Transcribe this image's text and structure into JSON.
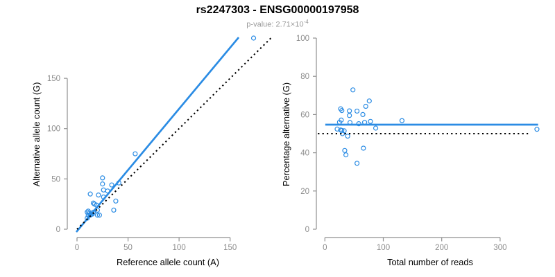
{
  "page": {
    "title": "rs2247303 - ENSG00000197958",
    "subtitle_base": "p-value: 2.71×10",
    "subtitle_exponent": "-4"
  },
  "colors": {
    "accent_blue": "#2b8ce4",
    "axis_gray": "#8f8f8f",
    "tick_text": "#8b8b8b",
    "axis_title_text": "#000000",
    "subtitle_text": "#9a9a9a",
    "dotted_black": "#000000",
    "background": "#ffffff"
  },
  "chart_data": [
    {
      "type": "scatter",
      "panel": "left",
      "xlabel": "Reference allele count (A)",
      "ylabel": "Alternative allele count (G)",
      "xticks": [
        0,
        50,
        100,
        150
      ],
      "yticks": [
        0,
        50,
        100,
        150
      ],
      "xlim": [
        -5,
        190
      ],
      "ylim": [
        -6,
        196
      ],
      "grid": false,
      "legend": "none",
      "points": [
        [
          10,
          11
        ],
        [
          11,
          14
        ],
        [
          13,
          14
        ],
        [
          14,
          15
        ],
        [
          15,
          15
        ],
        [
          16,
          17
        ],
        [
          10,
          17
        ],
        [
          12,
          16
        ],
        [
          11,
          18
        ],
        [
          13,
          35
        ],
        [
          16,
          26
        ],
        [
          17,
          25
        ],
        [
          19,
          24
        ],
        [
          20,
          19
        ],
        [
          20,
          14
        ],
        [
          22,
          14
        ],
        [
          21,
          34
        ],
        [
          25,
          45
        ],
        [
          25,
          51
        ],
        [
          26,
          39
        ],
        [
          26,
          32
        ],
        [
          30,
          38
        ],
        [
          34,
          44
        ],
        [
          36,
          19
        ],
        [
          38,
          28
        ],
        [
          41,
          46
        ],
        [
          57,
          75
        ],
        [
          173,
          190
        ]
      ],
      "lines": [
        {
          "name": "regression-line",
          "x1": -0.7,
          "y1": -2.8,
          "x2": 158.4,
          "y2": 190.7,
          "style": "solid",
          "meaning": "fitted allelic-imbalance regression, slope ~1.22"
        },
        {
          "name": "identity-line",
          "x1": 0,
          "y1": 0,
          "x2": 190,
          "y2": 190,
          "style": "dotted",
          "meaning": "y = x (no imbalance)"
        }
      ]
    },
    {
      "type": "scatter",
      "panel": "right",
      "xlabel": "Total number of reads",
      "ylabel": "Percentage alternative (G)",
      "xticks": [
        0,
        100,
        200,
        300
      ],
      "yticks": [
        0,
        20,
        40,
        60,
        80,
        100
      ],
      "xlim": [
        -16,
        377
      ],
      "ylim": [
        -3,
        103
      ],
      "grid": false,
      "legend": "none",
      "points": [
        [
          21,
          52.4
        ],
        [
          25,
          56.0
        ],
        [
          27,
          51.9
        ],
        [
          29,
          51.7
        ],
        [
          30,
          50.0
        ],
        [
          33,
          51.5
        ],
        [
          27,
          63.0
        ],
        [
          28,
          57.1
        ],
        [
          29,
          62.1
        ],
        [
          48,
          72.9
        ],
        [
          42,
          61.9
        ],
        [
          42,
          59.5
        ],
        [
          43,
          55.8
        ],
        [
          39,
          48.7
        ],
        [
          34,
          41.2
        ],
        [
          36,
          38.9
        ],
        [
          55,
          61.8
        ],
        [
          70,
          64.3
        ],
        [
          76,
          67.1
        ],
        [
          65,
          60.0
        ],
        [
          58,
          55.2
        ],
        [
          68,
          55.9
        ],
        [
          78,
          56.4
        ],
        [
          55,
          34.5
        ],
        [
          66,
          42.4
        ],
        [
          87,
          52.9
        ],
        [
          132,
          56.8
        ],
        [
          363,
          52.3
        ]
      ],
      "lines": [
        {
          "name": "fitted-mean-line",
          "x1": 0.7,
          "y1": 54.7,
          "x2": 365,
          "y2": 54.7,
          "style": "solid",
          "meaning": "mean alternative percentage ~54.7%"
        },
        {
          "name": "null-line",
          "x1": -12,
          "y1": 50,
          "x2": 352,
          "y2": 50,
          "style": "dotted",
          "meaning": "50% null expectation"
        }
      ]
    }
  ]
}
